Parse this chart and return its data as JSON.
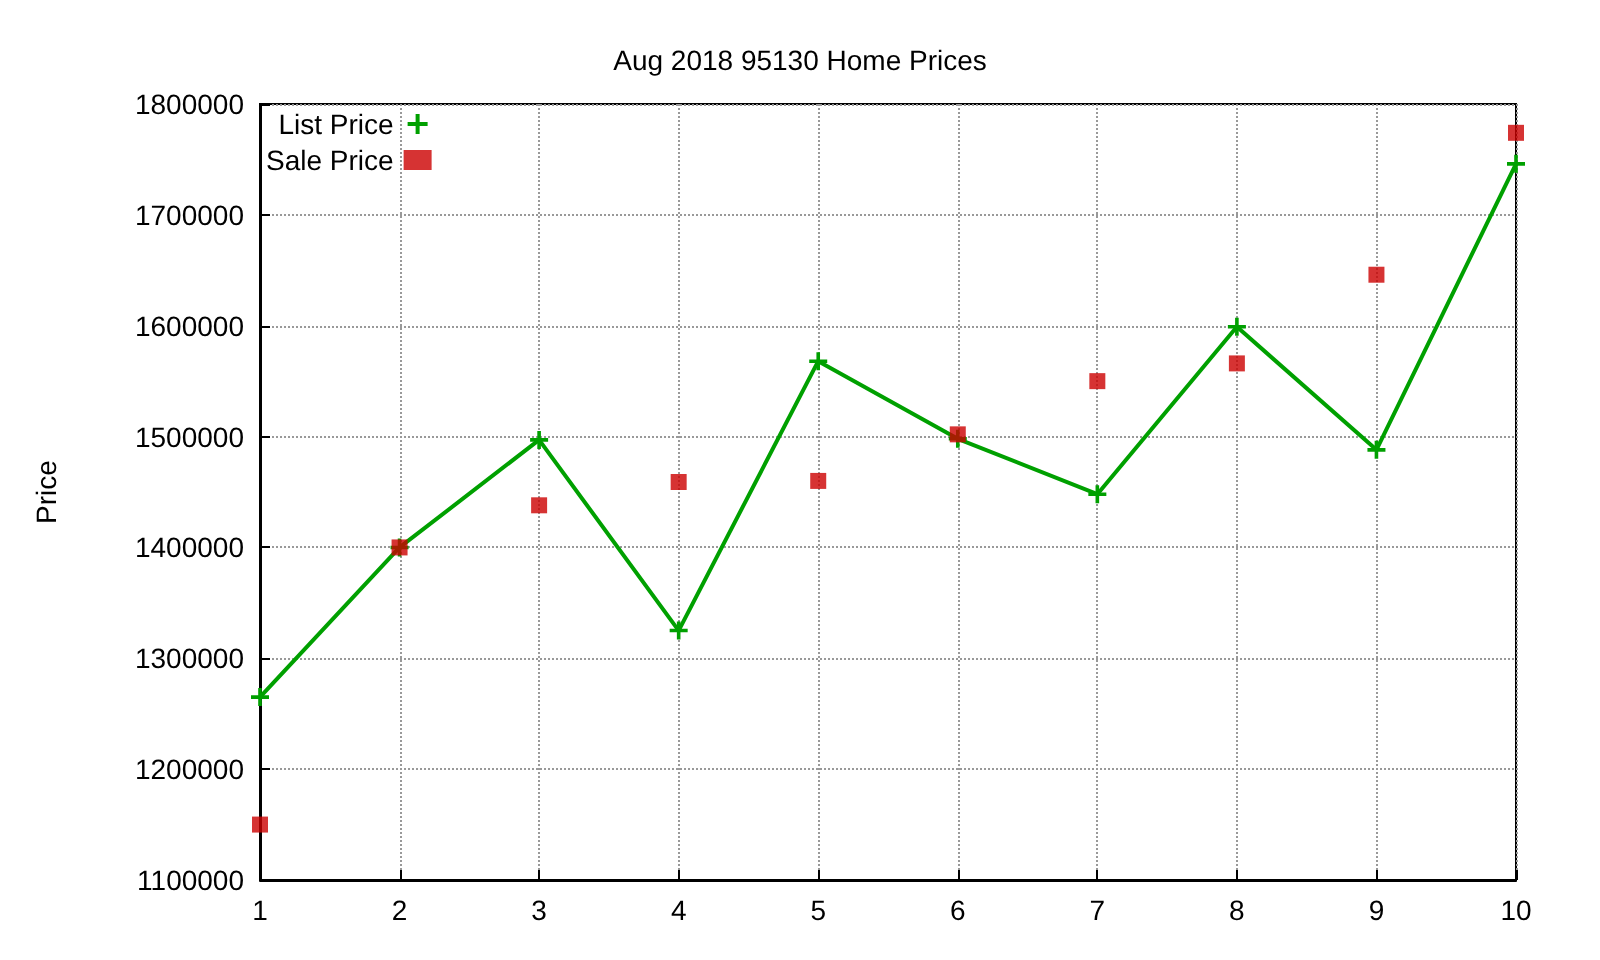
{
  "chart_data": {
    "type": "line",
    "title": "Aug 2018 95130 Home Prices",
    "ylabel": "Price",
    "x": [
      1,
      2,
      3,
      4,
      5,
      6,
      7,
      8,
      9,
      10
    ],
    "xlim": [
      1,
      10
    ],
    "xticks": [
      1,
      2,
      3,
      4,
      5,
      6,
      7,
      8,
      9,
      10
    ],
    "ylim": [
      1100000,
      1800000
    ],
    "yticks": [
      1100000,
      1200000,
      1300000,
      1400000,
      1500000,
      1600000,
      1700000,
      1800000
    ],
    "grid": true,
    "legend": "top left",
    "series": [
      {
        "name": "List Price",
        "color": "#00a000",
        "marker": "cross",
        "values": [
          1265000,
          1400000,
          1497000,
          1325000,
          1568000,
          1498000,
          1448000,
          1599000,
          1488000,
          1746000
        ]
      },
      {
        "name": "Sale Price",
        "type": "scatter",
        "color": "#cc0000",
        "marker": "square",
        "values": [
          1150000,
          1400000,
          1438000,
          1459000,
          1460000,
          1502000,
          1550000,
          1566000,
          1646000,
          1774000
        ]
      }
    ]
  }
}
